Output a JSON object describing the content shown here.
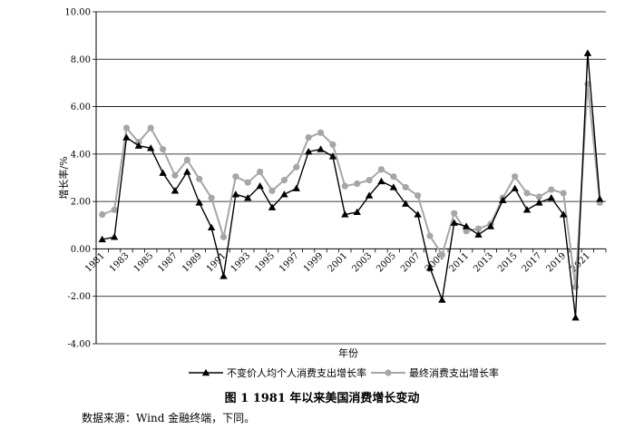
{
  "chart_data": {
    "type": "line",
    "caption": "图 1    1981 年以来美国消费增长变动",
    "source": "数据来源：Wind 金融终端，下同。",
    "xlabel": "年份",
    "ylabel": "增长率/%",
    "ylim": [
      -4,
      10
    ],
    "yticks": [
      "10.00",
      "8.00",
      "6.00",
      "4.00",
      "2.00",
      "0.00",
      "-2.00",
      "-4.00"
    ],
    "ytick_values": [
      10,
      8,
      6,
      4,
      2,
      0,
      -2,
      -4
    ],
    "xticks": [
      1981,
      1983,
      1985,
      1987,
      1989,
      1991,
      1993,
      1995,
      1997,
      1999,
      2001,
      2003,
      2005,
      2007,
      2009,
      2011,
      2013,
      2015,
      2017,
      2019,
      2021
    ],
    "x": [
      1981,
      1982,
      1983,
      1984,
      1985,
      1986,
      1987,
      1988,
      1989,
      1990,
      1991,
      1992,
      1993,
      1994,
      1995,
      1996,
      1997,
      1998,
      1999,
      2000,
      2001,
      2002,
      2003,
      2004,
      2005,
      2006,
      2007,
      2008,
      2009,
      2010,
      2011,
      2012,
      2013,
      2014,
      2015,
      2016,
      2017,
      2018,
      2019,
      2020,
      2021,
      2022
    ],
    "grid": true,
    "legend_position": "bottom",
    "series": [
      {
        "name": "不变价人均个人消费支出增长率",
        "color": "#000000",
        "marker": "triangle",
        "values": [
          0.4,
          0.5,
          4.7,
          4.35,
          4.25,
          3.2,
          2.45,
          3.25,
          1.95,
          0.9,
          -1.15,
          2.3,
          2.15,
          2.65,
          1.75,
          2.3,
          2.55,
          4.1,
          4.2,
          3.9,
          1.45,
          1.55,
          2.25,
          2.85,
          2.6,
          1.9,
          1.45,
          -0.8,
          -2.15,
          1.1,
          0.95,
          0.6,
          0.95,
          2.05,
          2.55,
          1.65,
          1.95,
          2.15,
          1.45,
          -2.9,
          8.25,
          2.1
        ]
      },
      {
        "name": "最终消费支出增长率",
        "color": "#a6a6a6",
        "marker": "circle",
        "values": [
          1.45,
          1.65,
          5.1,
          4.5,
          5.1,
          4.2,
          3.1,
          3.75,
          2.95,
          2.15,
          0.5,
          3.05,
          2.8,
          3.25,
          2.45,
          2.9,
          3.45,
          4.7,
          4.9,
          4.4,
          2.65,
          2.75,
          2.9,
          3.35,
          3.05,
          2.6,
          2.25,
          0.55,
          -0.25,
          1.5,
          0.75,
          0.85,
          1.05,
          2.15,
          3.05,
          2.35,
          2.2,
          2.5,
          2.35,
          -1.6,
          6.95,
          1.95
        ]
      }
    ]
  }
}
